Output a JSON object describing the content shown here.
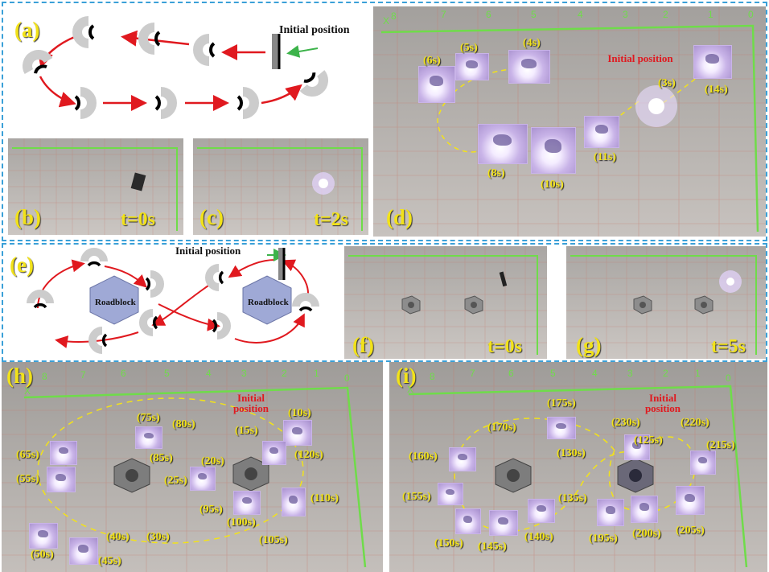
{
  "panels": {
    "a": {
      "label": "(a)",
      "initial_position": "Initial position"
    },
    "b": {
      "label": "(b)",
      "time": "t=0s"
    },
    "c": {
      "label": "(c)",
      "time": "t=2s"
    },
    "d": {
      "label": "(d)",
      "initial_position": "Initial position",
      "times": [
        "(6s)",
        "(5s)",
        "(4s)",
        "(3s)",
        "(14s)",
        "(8s)",
        "(10s)",
        "(11s)"
      ],
      "axis_ticks": [
        "0",
        "1",
        "2",
        "3",
        "4",
        "5",
        "6",
        "7",
        "8"
      ],
      "x_axis": "X"
    },
    "e": {
      "label": "(e)",
      "initial_position": "Initial position",
      "roadblock": "Roadblock"
    },
    "f": {
      "label": "(f)",
      "time": "t=0s"
    },
    "g": {
      "label": "(g)",
      "time": "t=5s"
    },
    "h": {
      "label": "(h)",
      "initial_position": "Initial position",
      "times": [
        "(10s)",
        "(15s)",
        "(120s)",
        "(110s)",
        "(105s)",
        "(100s)",
        "(95s)",
        "(25s)",
        "(20s)",
        "(85s)",
        "(80s)",
        "(75s)",
        "(65s)",
        "(55s)",
        "(50s)",
        "(45s)",
        "(40s)",
        "(30s)"
      ],
      "axis_ticks": [
        "0",
        "1",
        "2",
        "3",
        "4",
        "5",
        "6",
        "7",
        "8"
      ],
      "x_axis": "X"
    },
    "i": {
      "label": "(i)",
      "initial_position": "Initial position",
      "times": [
        "(175s)",
        "(170s)",
        "(230s)",
        "(125s)",
        "(220s)",
        "(215s)",
        "(160s)",
        "(130s)",
        "(155s)",
        "(135s)",
        "(150s)",
        "(145s)",
        "(140s)",
        "(195s)",
        "(200s)",
        "(205s)"
      ],
      "axis_ticks": [
        "0",
        "1",
        "2",
        "3",
        "4",
        "5",
        "6",
        "7",
        "8"
      ],
      "x_axis": "X"
    }
  },
  "colors": {
    "label": "#f2e21a",
    "arrow_red": "#e0191f",
    "axis_green": "#6fdc4a",
    "dash_blue": "#3aa0d8"
  }
}
